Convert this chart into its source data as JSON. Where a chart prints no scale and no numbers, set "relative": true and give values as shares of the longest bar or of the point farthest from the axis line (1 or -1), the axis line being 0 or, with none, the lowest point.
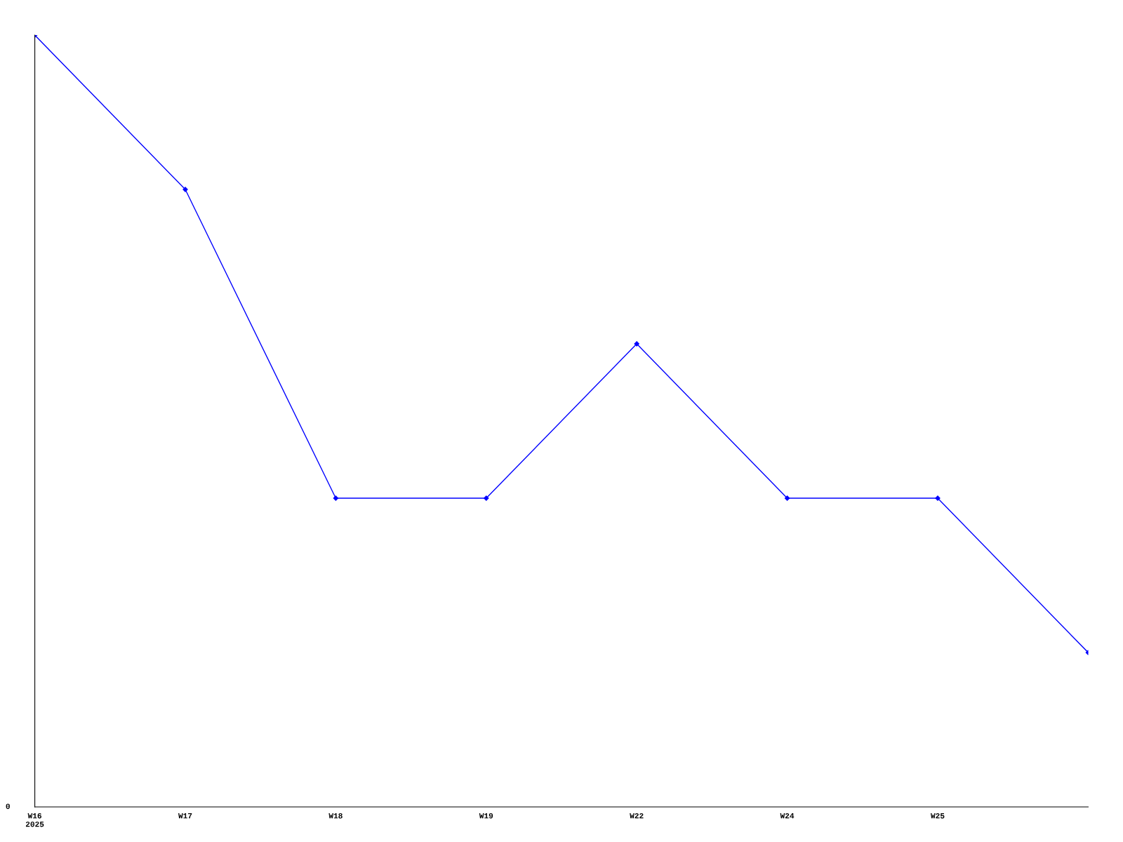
{
  "chart_data": {
    "type": "line",
    "relative": true,
    "categories": [
      "W16\n2025",
      "W17",
      "W18",
      "W19",
      "W22",
      "W24",
      "W25",
      null
    ],
    "series": [
      {
        "color": "#0000ff",
        "values": [
          1,
          0.8,
          0.4,
          0.4,
          0.6,
          0.4,
          0.4,
          0.2
        ]
      }
    ],
    "marker": "diamond",
    "line_style": "solid",
    "grid": false,
    "legend": false,
    "annotations": [
      "0"
    ]
  }
}
